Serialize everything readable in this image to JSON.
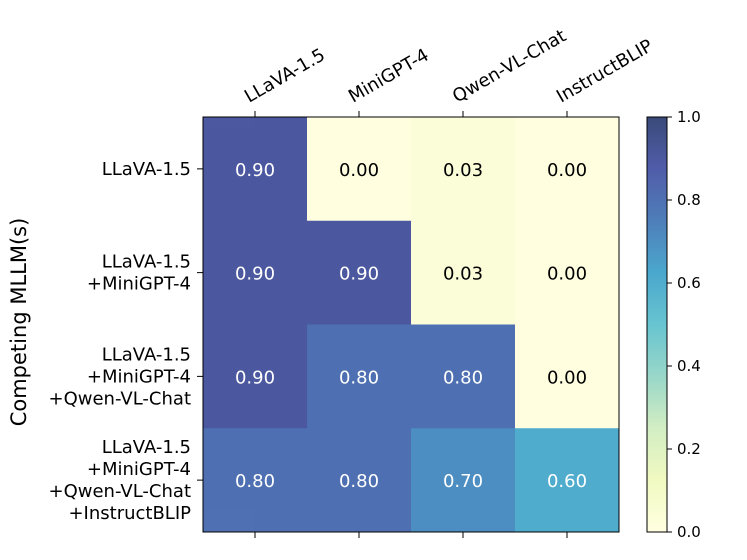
{
  "chart_data": {
    "type": "heatmap",
    "title": "",
    "xlabel": "",
    "ylabel": "Competing MLLM(s)",
    "columns": [
      "LLaVA-1.5",
      "MiniGPT-4",
      "Qwen-VL-Chat",
      "InstructBLIP"
    ],
    "rows": [
      [
        "LLaVA-1.5"
      ],
      [
        "LLaVA-1.5",
        "+MiniGPT-4"
      ],
      [
        "LLaVA-1.5",
        "+MiniGPT-4",
        "+Qwen-VL-Chat"
      ],
      [
        "LLaVA-1.5",
        "+MiniGPT-4",
        "+Qwen-VL-Chat",
        "+InstructBLIP"
      ]
    ],
    "values": [
      [
        0.9,
        0.0,
        0.03,
        0.0
      ],
      [
        0.9,
        0.9,
        0.03,
        0.0
      ],
      [
        0.9,
        0.8,
        0.8,
        0.0
      ],
      [
        0.8,
        0.8,
        0.7,
        0.6
      ]
    ],
    "cell_labels": [
      [
        "0.90",
        "0.00",
        "0.03",
        "0.00"
      ],
      [
        "0.90",
        "0.90",
        "0.03",
        "0.00"
      ],
      [
        "0.90",
        "0.80",
        "0.80",
        "0.00"
      ],
      [
        "0.80",
        "0.80",
        "0.70",
        "0.60"
      ]
    ],
    "colormap": "YlGnBu",
    "vmin": 0.0,
    "vmax": 1.0,
    "colorbar_ticks": [
      "0.0",
      "0.2",
      "0.4",
      "0.6",
      "0.8",
      "1.0"
    ],
    "colorbar_tick_values": [
      0.0,
      0.2,
      0.4,
      0.6,
      0.8,
      1.0
    ],
    "x_tick_position": "top"
  }
}
